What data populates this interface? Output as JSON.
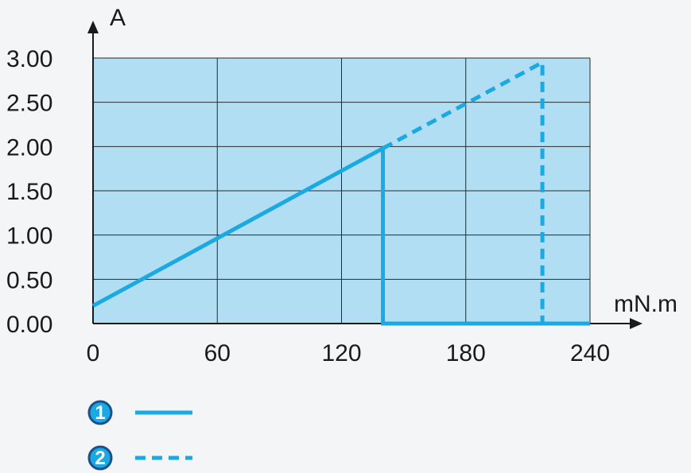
{
  "chart_data": {
    "type": "line",
    "xlabel": "mN.m",
    "ylabel": "A",
    "xlim": [
      0,
      240
    ],
    "ylim": [
      0,
      3.0
    ],
    "x_ticks": [
      0,
      60,
      120,
      180,
      240
    ],
    "x_tick_labels": [
      "0",
      "60",
      "120",
      "180",
      "240"
    ],
    "y_ticks": [
      0,
      0.5,
      1.0,
      1.5,
      2.0,
      2.5,
      3.0
    ],
    "y_tick_labels": [
      "0.00",
      "0.50",
      "1.00",
      "1.50",
      "2.00",
      "2.50",
      "3.00"
    ],
    "grid": true,
    "series": [
      {
        "name": "1",
        "style": "solid",
        "points": [
          [
            0,
            0.2
          ],
          [
            140,
            1.98
          ],
          [
            140,
            0
          ],
          [
            240,
            0
          ]
        ]
      },
      {
        "name": "2",
        "style": "dashed",
        "points": [
          [
            140,
            1.98
          ],
          [
            217,
            2.95
          ],
          [
            217,
            0
          ]
        ]
      }
    ],
    "legend": [
      "1",
      "2"
    ],
    "legend_position": "bottom-left"
  },
  "colors": {
    "plot_background": "#b2def3",
    "grid": "#2a2a2a",
    "series": "#1aa9e0",
    "axis": "#1a1a1a"
  }
}
